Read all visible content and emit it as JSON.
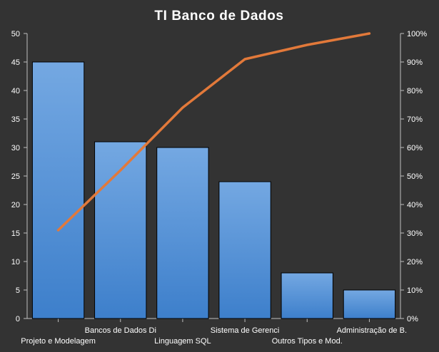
{
  "chart_data": {
    "type": "bar",
    "title": "TI Banco de Dados",
    "categories": [
      "Projeto e Modelagem",
      "Bancos de Dados Di",
      "Linguagem SQL",
      "Sistema de Gerenci",
      "Outros Tipos e Mod.",
      "Administração de B."
    ],
    "series": [
      {
        "type": "bar",
        "values": [
          45,
          31,
          30,
          24,
          8,
          5
        ],
        "color": "#4f8fd6"
      },
      {
        "type": "line",
        "axis": "right",
        "values": [
          0.31,
          0.52,
          0.74,
          0.91,
          0.96,
          1.0
        ],
        "color": "#e2793a"
      }
    ],
    "y_left": {
      "min": 0,
      "max": 50,
      "ticks": [
        "0",
        "5",
        "10",
        "15",
        "20",
        "25",
        "30",
        "35",
        "40",
        "45",
        "50"
      ]
    },
    "y_right": {
      "min": 0,
      "max": 1,
      "ticks": [
        "0%",
        "10%",
        "20%",
        "30%",
        "40%",
        "50%",
        "60%",
        "70%",
        "80%",
        "90%",
        "100%"
      ]
    },
    "grid": false,
    "legend": "none",
    "colors": {
      "background": "#333333",
      "axis": "#bfbfbf",
      "text": "#ffffff",
      "bar_top": "#74a8e2",
      "bar_bottom": "#3d7fcb",
      "bar_border": "#000000",
      "line": "#e2793a"
    }
  }
}
